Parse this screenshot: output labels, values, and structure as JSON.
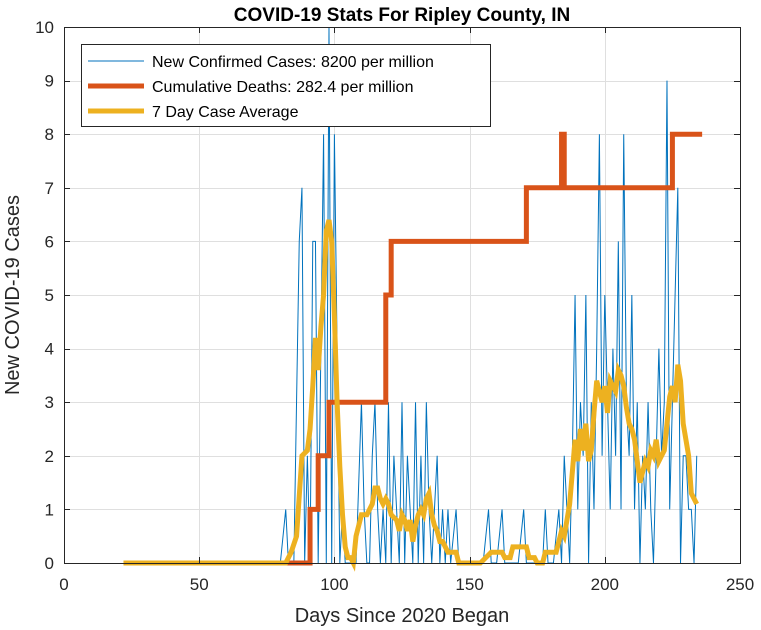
{
  "chart_data": {
    "type": "line",
    "title": "COVID-19 Stats For Ripley County, IN",
    "xlabel": "Days Since 2020 Began",
    "ylabel": "New COVID-19 Cases",
    "xlim": [
      0,
      250
    ],
    "ylim": [
      0,
      10
    ],
    "xticks": [
      0,
      50,
      100,
      150,
      200,
      250
    ],
    "yticks": [
      0,
      1,
      2,
      3,
      4,
      5,
      6,
      7,
      8,
      9,
      10
    ],
    "xtick_labels": [
      "0",
      "50",
      "100",
      "150",
      "200",
      "250"
    ],
    "ytick_labels": [
      "0",
      "1",
      "2",
      "3",
      "4",
      "5",
      "6",
      "7",
      "8",
      "9",
      "10"
    ],
    "grid": true,
    "legend_position": "top-left",
    "series": [
      {
        "name": "New Confirmed Cases: 8200 per million",
        "color": "#0072BD",
        "line_width": 1,
        "points": [
          [
            22,
            0
          ],
          [
            80,
            0
          ],
          [
            82,
            1
          ],
          [
            83,
            0
          ],
          [
            85,
            0
          ],
          [
            86,
            3
          ],
          [
            87,
            6
          ],
          [
            88,
            7
          ],
          [
            89,
            0
          ],
          [
            90,
            2
          ],
          [
            91,
            0
          ],
          [
            92,
            6
          ],
          [
            93,
            6
          ],
          [
            94,
            0
          ],
          [
            95,
            4
          ],
          [
            96,
            8
          ],
          [
            97,
            0
          ],
          [
            98,
            10
          ],
          [
            99,
            0
          ],
          [
            100,
            8
          ],
          [
            101,
            4
          ],
          [
            102,
            0
          ],
          [
            103,
            1
          ],
          [
            104,
            0
          ],
          [
            106,
            0
          ],
          [
            108,
            0
          ],
          [
            110,
            3
          ],
          [
            111,
            1
          ],
          [
            112,
            0
          ],
          [
            113,
            0
          ],
          [
            114,
            2
          ],
          [
            115,
            3
          ],
          [
            116,
            1
          ],
          [
            117,
            0
          ],
          [
            118,
            1
          ],
          [
            119,
            0
          ],
          [
            120,
            3
          ],
          [
            121,
            0
          ],
          [
            122,
            2
          ],
          [
            123,
            1
          ],
          [
            124,
            0
          ],
          [
            125,
            3
          ],
          [
            126,
            0
          ],
          [
            127,
            2
          ],
          [
            128,
            1
          ],
          [
            129,
            0
          ],
          [
            130,
            3
          ],
          [
            131,
            0
          ],
          [
            132,
            2
          ],
          [
            133,
            0
          ],
          [
            134,
            3
          ],
          [
            135,
            1
          ],
          [
            136,
            0
          ],
          [
            137,
            1
          ],
          [
            138,
            2
          ],
          [
            139,
            0
          ],
          [
            140,
            1
          ],
          [
            141,
            0
          ],
          [
            142,
            1
          ],
          [
            143,
            0
          ],
          [
            145,
            1
          ],
          [
            146,
            0
          ],
          [
            148,
            0
          ],
          [
            150,
            0
          ],
          [
            155,
            0
          ],
          [
            157,
            1
          ],
          [
            158,
            0
          ],
          [
            160,
            0
          ],
          [
            162,
            1
          ],
          [
            163,
            0
          ],
          [
            165,
            0
          ],
          [
            168,
            0
          ],
          [
            170,
            1
          ],
          [
            171,
            0
          ],
          [
            173,
            0
          ],
          [
            175,
            0
          ],
          [
            177,
            0
          ],
          [
            178,
            1
          ],
          [
            179,
            0
          ],
          [
            181,
            0
          ],
          [
            183,
            1
          ],
          [
            184,
            0
          ],
          [
            185,
            2
          ],
          [
            186,
            1
          ],
          [
            187,
            0
          ],
          [
            188,
            2
          ],
          [
            189,
            5
          ],
          [
            190,
            1
          ],
          [
            191,
            3
          ],
          [
            192,
            2
          ],
          [
            193,
            5
          ],
          [
            194,
            0
          ],
          [
            195,
            3
          ],
          [
            196,
            1
          ],
          [
            197,
            4
          ],
          [
            198,
            8
          ],
          [
            199,
            2
          ],
          [
            200,
            5
          ],
          [
            201,
            3
          ],
          [
            202,
            1
          ],
          [
            203,
            4
          ],
          [
            204,
            2
          ],
          [
            205,
            6
          ],
          [
            206,
            1
          ],
          [
            207,
            8
          ],
          [
            208,
            3
          ],
          [
            209,
            2
          ],
          [
            210,
            5
          ],
          [
            211,
            1
          ],
          [
            212,
            3
          ],
          [
            213,
            0
          ],
          [
            214,
            2
          ],
          [
            215,
            1
          ],
          [
            216,
            3
          ],
          [
            217,
            1
          ],
          [
            218,
            0
          ],
          [
            219,
            2
          ],
          [
            220,
            4
          ],
          [
            221,
            2
          ],
          [
            222,
            3
          ],
          [
            223,
            9
          ],
          [
            224,
            1
          ],
          [
            225,
            3
          ],
          [
            226,
            5
          ],
          [
            227,
            7
          ],
          [
            228,
            0
          ],
          [
            229,
            2
          ],
          [
            230,
            2
          ],
          [
            231,
            1
          ],
          [
            232,
            1
          ],
          [
            233,
            0
          ],
          [
            234,
            2
          ]
        ]
      },
      {
        "name": "Cumulative Deaths: 282.4 per million",
        "color": "#D95319",
        "line_width": 5,
        "points": [
          [
            82,
            0
          ],
          [
            91,
            0
          ],
          [
            91,
            1
          ],
          [
            94,
            1
          ],
          [
            94,
            2
          ],
          [
            98,
            2
          ],
          [
            98,
            3
          ],
          [
            119,
            3
          ],
          [
            119,
            5
          ],
          [
            121,
            5
          ],
          [
            121,
            6
          ],
          [
            171,
            6
          ],
          [
            171,
            7
          ],
          [
            184,
            7
          ],
          [
            184,
            8
          ],
          [
            185,
            8
          ],
          [
            185,
            7
          ],
          [
            225,
            7
          ],
          [
            225,
            8
          ],
          [
            236,
            8
          ]
        ]
      },
      {
        "name": "7 Day Case Average",
        "color": "#EDB120",
        "line_width": 5,
        "points": [
          [
            22,
            0
          ],
          [
            82,
            0
          ],
          [
            84,
            0.2
          ],
          [
            86,
            0.5
          ],
          [
            88,
            2
          ],
          [
            90,
            2.1
          ],
          [
            91,
            2.5
          ],
          [
            92,
            3.3
          ],
          [
            93,
            4.2
          ],
          [
            94,
            3.6
          ],
          [
            95,
            4.4
          ],
          [
            96,
            5
          ],
          [
            97,
            6.2
          ],
          [
            98,
            6.4
          ],
          [
            99,
            6
          ],
          [
            100,
            4.6
          ],
          [
            101,
            3
          ],
          [
            102,
            1.8
          ],
          [
            103,
            0.9
          ],
          [
            104,
            0.3
          ],
          [
            105,
            0.1
          ],
          [
            106,
            0.1
          ],
          [
            107,
            0
          ],
          [
            108,
            0.5
          ],
          [
            110,
            0.9
          ],
          [
            112,
            0.9
          ],
          [
            114,
            1.1
          ],
          [
            115,
            1.4
          ],
          [
            116,
            1.4
          ],
          [
            117,
            1.2
          ],
          [
            118,
            1.1
          ],
          [
            119,
            1.2
          ],
          [
            120,
            1.1
          ],
          [
            121,
            0.9
          ],
          [
            123,
            0.8
          ],
          [
            124,
            0.6
          ],
          [
            125,
            0.9
          ],
          [
            126,
            0.8
          ],
          [
            127,
            0.6
          ],
          [
            128,
            0.8
          ],
          [
            129,
            0.4
          ],
          [
            130,
            0.7
          ],
          [
            131,
            0.9
          ],
          [
            132,
            1
          ],
          [
            133,
            0.9
          ],
          [
            134,
            1.2
          ],
          [
            135,
            1.3
          ],
          [
            136,
            0.9
          ],
          [
            137,
            0.7
          ],
          [
            138,
            0.6
          ],
          [
            139,
            0.4
          ],
          [
            140,
            0.4
          ],
          [
            141,
            0.3
          ],
          [
            142,
            0.2
          ],
          [
            143,
            0.2
          ],
          [
            145,
            0.2
          ],
          [
            146,
            0
          ],
          [
            150,
            0
          ],
          [
            154,
            0
          ],
          [
            156,
            0.1
          ],
          [
            158,
            0.2
          ],
          [
            162,
            0.2
          ],
          [
            163,
            0.1
          ],
          [
            165,
            0.1
          ],
          [
            166,
            0.3
          ],
          [
            171,
            0.3
          ],
          [
            172,
            0.1
          ],
          [
            174,
            0.1
          ],
          [
            175,
            0
          ],
          [
            177,
            0
          ],
          [
            178,
            0.2
          ],
          [
            182,
            0.2
          ],
          [
            183,
            0.4
          ],
          [
            184,
            0.6
          ],
          [
            185,
            0.5
          ],
          [
            186,
            0.8
          ],
          [
            187,
            1.1
          ],
          [
            188,
            1.7
          ],
          [
            189,
            2.3
          ],
          [
            190,
            1.9
          ],
          [
            191,
            2.5
          ],
          [
            192,
            2.1
          ],
          [
            193,
            2.6
          ],
          [
            194,
            1.9
          ],
          [
            195,
            2.1
          ],
          [
            196,
            2.8
          ],
          [
            197,
            3.4
          ],
          [
            198,
            3.2
          ],
          [
            199,
            3
          ],
          [
            200,
            3.3
          ],
          [
            201,
            2.8
          ],
          [
            202,
            3.4
          ],
          [
            203,
            3.3
          ],
          [
            204,
            3.2
          ],
          [
            205,
            3.6
          ],
          [
            206,
            3.5
          ],
          [
            207,
            3.3
          ],
          [
            208,
            2.9
          ],
          [
            209,
            2.6
          ],
          [
            210,
            2.5
          ],
          [
            211,
            2.3
          ],
          [
            212,
            1.9
          ],
          [
            213,
            1.5
          ],
          [
            214,
            1.7
          ],
          [
            215,
            1.9
          ],
          [
            216,
            1.8
          ],
          [
            217,
            2.1
          ],
          [
            218,
            2
          ],
          [
            219,
            2.3
          ],
          [
            220,
            1.9
          ],
          [
            221,
            2
          ],
          [
            222,
            2.1
          ],
          [
            223,
            2.6
          ],
          [
            224,
            3.1
          ],
          [
            225,
            3.3
          ],
          [
            226,
            3
          ],
          [
            227,
            3.7
          ],
          [
            228,
            3.4
          ],
          [
            229,
            2.6
          ],
          [
            230,
            2.3
          ],
          [
            231,
            2
          ],
          [
            232,
            1.3
          ],
          [
            233,
            1.2
          ],
          [
            234,
            1.1
          ]
        ]
      }
    ]
  }
}
